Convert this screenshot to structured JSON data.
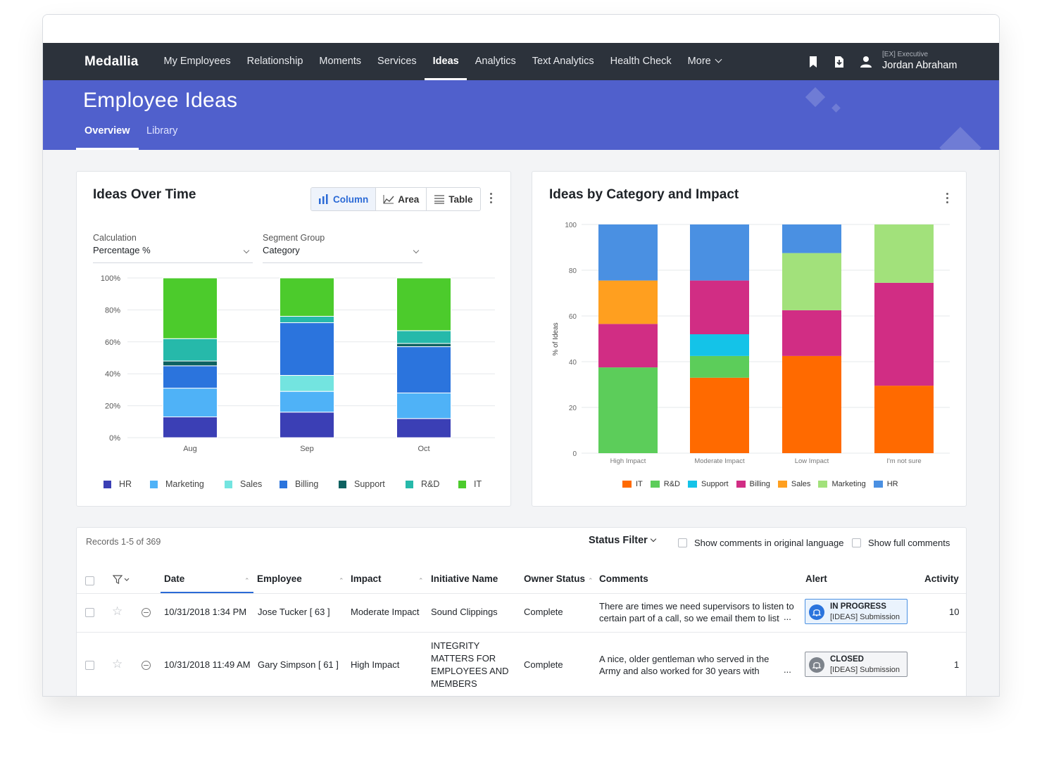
{
  "nav": {
    "brand": "Medallia",
    "items": [
      "My Employees",
      "Relationship",
      "Moments",
      "Services",
      "Ideas",
      "Analytics",
      "Text Analytics",
      "Health Check",
      "More"
    ],
    "active": "Ideas",
    "user_role": "[EX] Executive",
    "user_name": "Jordan Abraham"
  },
  "banner": {
    "title": "Employee Ideas",
    "tabs": [
      "Overview",
      "Library"
    ]
  },
  "ideas_over_time": {
    "title": "Ideas Over Time",
    "view_buttons": [
      "Column",
      "Area",
      "Table"
    ],
    "calculation_label": "Calculation",
    "calculation_value": "Percentage %",
    "segment_label": "Segment Group",
    "segment_value": "Category"
  },
  "ideas_by_category": {
    "title": "Ideas by Category and Impact"
  },
  "colors": {
    "HR": "#3b3fb5",
    "Marketing": "#4fb2f7",
    "Sales": "#73e4e0",
    "Billing": "#2b74dd",
    "Support": "#0d6160",
    "R&D": "#26b9aa",
    "IT": "#4ccb2c",
    "IT2": "#ff6a00",
    "R&D2": "#5ccd5a",
    "Support2": "#14c3e8",
    "Billing2": "#d12d84",
    "Sales2": "#ff9f1f",
    "Marketing2": "#a2e17b",
    "HR2": "#4a90e2"
  },
  "chart_data": [
    {
      "type": "bar",
      "stacked": true,
      "categories": [
        "Aug",
        "Sep",
        "Oct"
      ],
      "ylim": [
        0,
        100
      ],
      "yticks": [
        "0%",
        "20%",
        "40%",
        "60%",
        "80%",
        "100%"
      ],
      "legend_position": "bottom",
      "series": [
        {
          "name": "HR",
          "values": [
            13,
            16,
            12
          ]
        },
        {
          "name": "Marketing",
          "values": [
            18,
            13,
            16
          ]
        },
        {
          "name": "Sales",
          "values": [
            0,
            10,
            0
          ]
        },
        {
          "name": "Billing",
          "values": [
            14,
            33,
            29
          ]
        },
        {
          "name": "Support",
          "values": [
            3,
            0,
            2
          ]
        },
        {
          "name": "R&D",
          "values": [
            14,
            4,
            8
          ]
        },
        {
          "name": "IT",
          "values": [
            38,
            24,
            33
          ]
        }
      ]
    },
    {
      "type": "bar",
      "stacked": true,
      "categories": [
        "High Impact",
        "Moderate Impact",
        "Low Impact",
        "I'm not sure"
      ],
      "ylabel": "% of Ideas",
      "ylim": [
        0,
        100
      ],
      "yticks": [
        "0",
        "20",
        "40",
        "60",
        "80",
        "100"
      ],
      "legend_position": "bottom",
      "series": [
        {
          "name": "IT",
          "values": [
            0,
            33,
            42.5,
            29.5
          ]
        },
        {
          "name": "R&D",
          "values": [
            37.5,
            9.5,
            0,
            0
          ]
        },
        {
          "name": "Support",
          "values": [
            0,
            9.5,
            0,
            0
          ]
        },
        {
          "name": "Billing",
          "values": [
            19,
            23.5,
            20,
            45
          ]
        },
        {
          "name": "Sales",
          "values": [
            19,
            0,
            0,
            0
          ]
        },
        {
          "name": "Marketing",
          "values": [
            0,
            0,
            25,
            25.5
          ]
        },
        {
          "name": "HR",
          "values": [
            24.5,
            24.5,
            12.5,
            0
          ]
        }
      ]
    }
  ],
  "table": {
    "records": "Records 1-5 of 369",
    "status_filter": "Status Filter",
    "opt_original": "Show comments in original language",
    "opt_full": "Show full comments",
    "headers": [
      "Date",
      "Employee",
      "Impact",
      "Initiative Name",
      "Owner Status",
      "Comments",
      "Alert",
      "Activity"
    ],
    "rows": [
      {
        "date": "10/31/2018 1:34 PM",
        "employee": "Jose Tucker [ 63 ]",
        "impact": "Moderate Impact",
        "initiative": "Sound Clippings",
        "owner_status": "Complete",
        "comment_1": "There are times we need supervisors to listen to",
        "comment_2": "certain part of a call, so we email them to list",
        "ellipsis": "...",
        "alert_status": "IN PROGRESS",
        "alert_sub": "[IDEAS] Submission",
        "activity": "10"
      },
      {
        "date": "10/31/2018 11:49 AM",
        "employee": "Gary Simpson [ 61 ]",
        "impact": "High Impact",
        "initiative": "INTEGRITY MATTERS FOR EMPLOYEES AND MEMBERS",
        "owner_status": "Complete",
        "comment_1": "A nice, older gentleman who served in the",
        "comment_2": "Army and also worked for 30 years with",
        "ellipsis": "...",
        "alert_status": "CLOSED",
        "alert_sub": "[IDEAS] Submission",
        "activity": "1"
      }
    ]
  }
}
